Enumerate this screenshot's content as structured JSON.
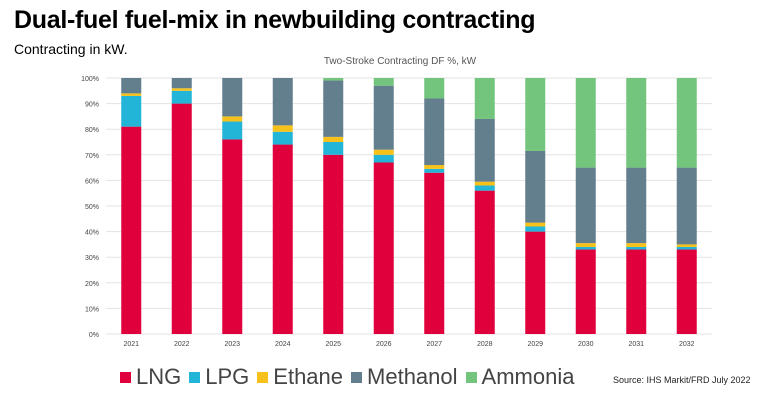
{
  "header": {
    "title": "Dual-fuel fuel-mix in newbuilding contracting",
    "subtitle": "Contracting in kW."
  },
  "source": "Source: IHS Markit/FRD July 2022",
  "chart_data": {
    "type": "bar",
    "stacked": true,
    "title": "Two-Stroke Contracting DF %, kW",
    "xlabel": "",
    "ylabel": "",
    "ylim": [
      0,
      100
    ],
    "yticks": [
      "0%",
      "10%",
      "20%",
      "30%",
      "40%",
      "50%",
      "60%",
      "70%",
      "80%",
      "90%",
      "100%"
    ],
    "grid": true,
    "legend_position": "bottom",
    "categories": [
      "2021",
      "2022",
      "2023",
      "2024",
      "2025",
      "2026",
      "2027",
      "2028",
      "2029",
      "2030",
      "2031",
      "2032"
    ],
    "series": [
      {
        "name": "LNG",
        "color": "#E0003C",
        "values": [
          81,
          90,
          76,
          74,
          70,
          67,
          63,
          56,
          40,
          33,
          33,
          33
        ]
      },
      {
        "name": "LPG",
        "color": "#22B5D8",
        "values": [
          12,
          5,
          7,
          5,
          5,
          3,
          1.5,
          2,
          2,
          1,
          1,
          1
        ]
      },
      {
        "name": "Ethane",
        "color": "#F5C11A",
        "values": [
          1,
          1,
          2,
          2.5,
          2,
          2,
          1.5,
          1.5,
          1.5,
          1.5,
          1.5,
          1
        ]
      },
      {
        "name": "Methanol",
        "color": "#637F8E",
        "values": [
          6,
          4,
          15,
          18.5,
          22,
          25,
          26,
          24.5,
          28,
          29.5,
          29.5,
          30
        ]
      },
      {
        "name": "Ammonia",
        "color": "#73C57D",
        "values": [
          0,
          0,
          0,
          0,
          1,
          3,
          8,
          16,
          28.5,
          35,
          35,
          35
        ]
      }
    ]
  }
}
